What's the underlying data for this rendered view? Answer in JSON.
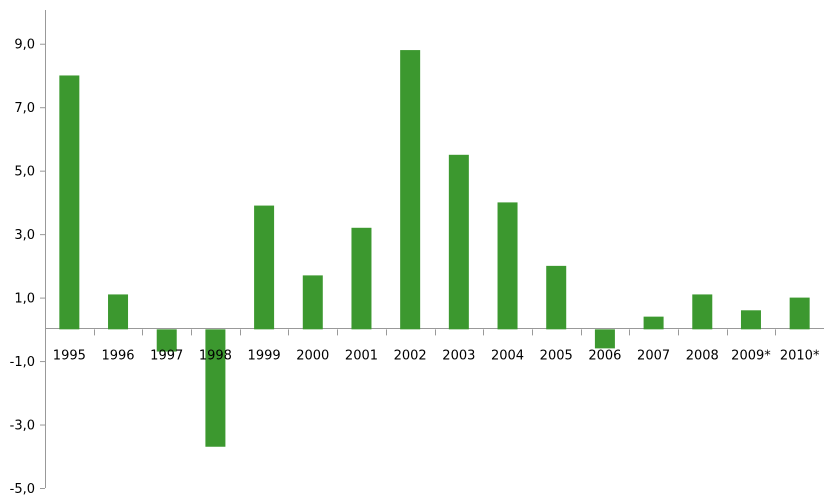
{
  "chart_data": {
    "type": "bar",
    "title": "",
    "xlabel": "",
    "ylabel": "",
    "categories": [
      "1995",
      "1996",
      "1997",
      "1998",
      "1999",
      "2000",
      "2001",
      "2002",
      "2003",
      "2004",
      "2005",
      "2006",
      "2007",
      "2008",
      "2009*",
      "2010*"
    ],
    "values": [
      8.0,
      1.1,
      -0.7,
      -3.7,
      3.9,
      1.7,
      3.2,
      8.8,
      5.5,
      4.0,
      2.0,
      -0.6,
      0.4,
      1.1,
      0.6,
      1.0
    ],
    "ylim": [
      -5.0,
      10.0
    ],
    "y_ticks": [
      "9,0",
      "7,0",
      "5,0",
      "3,0",
      "1,0",
      "-1,0",
      "-3,0",
      "-5,0"
    ],
    "grid": false,
    "legend": "none",
    "bar_color": "#3c982f"
  }
}
